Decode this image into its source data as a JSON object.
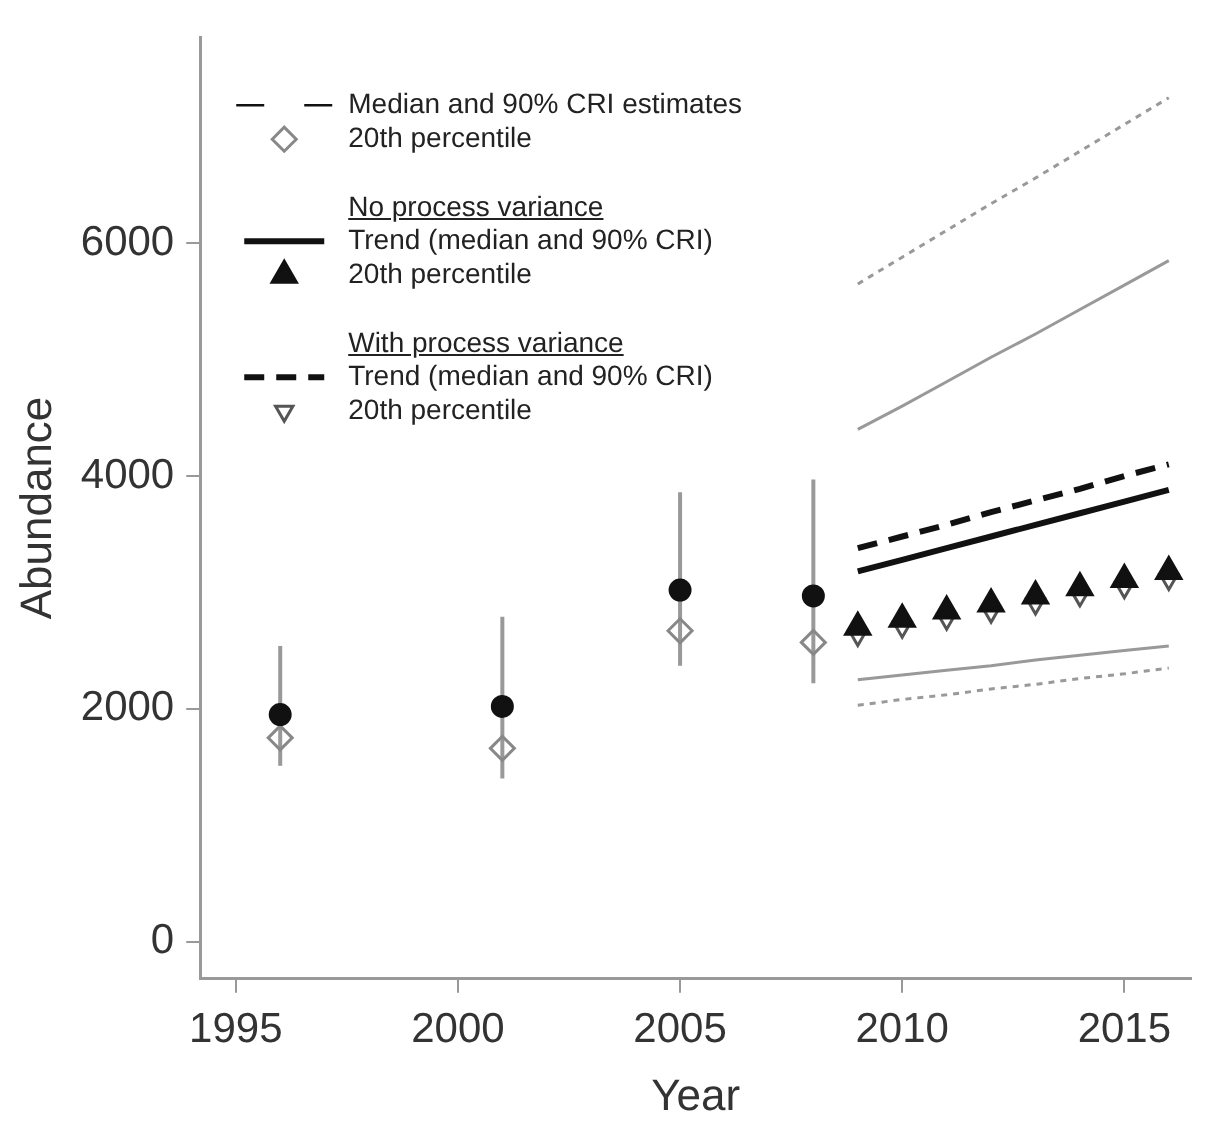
{
  "chart_data": {
    "type": "line",
    "xlabel": "Year",
    "ylabel": "Abundance",
    "xlim": [
      1994.2,
      2016.5
    ],
    "ylim": [
      -320,
      7770
    ],
    "xticks": [
      1995,
      2000,
      2005,
      2010,
      2015
    ],
    "yticks": [
      0,
      2000,
      4000,
      6000
    ],
    "grid": false,
    "legend": "top left",
    "annotations": [
      "No process variance",
      "With process variance"
    ],
    "series": [
      {
        "name": "Median and 90% CRI estimates",
        "type": "scatter",
        "marker": "circle",
        "color": "#111111",
        "x": [
          1996,
          2001,
          2005,
          2008
        ],
        "values": [
          1950,
          2020,
          3020,
          2970
        ],
        "errors": [
          [
            1510,
            2540
          ],
          [
            1400,
            2790
          ],
          [
            2370,
            3860
          ],
          [
            2220,
            3970
          ]
        ]
      },
      {
        "name": "20th percentile",
        "type": "scatter",
        "marker": "diamond",
        "color": "#888888",
        "x": [
          1996,
          2001,
          2005,
          2008
        ],
        "values": [
          1750,
          1660,
          2670,
          2570
        ]
      },
      {
        "name": "Trend (median and 90% CRI)",
        "type": "line",
        "line_style": "solid",
        "color": "#111111",
        "x": [
          2009,
          2010,
          2011,
          2012,
          2013,
          2014,
          2015,
          2016
        ],
        "values": [
          3180,
          3280,
          3380,
          3480,
          3580,
          3680,
          3780,
          3880
        ]
      },
      {
        "type": "line",
        "line_style": "solid",
        "color": "#999999",
        "x": [
          2009,
          2010,
          2011,
          2012,
          2013,
          2014,
          2015,
          2016
        ],
        "values": [
          4400,
          4600,
          4810,
          5020,
          5220,
          5430,
          5640,
          5850
        ]
      },
      {
        "type": "line",
        "line_style": "solid",
        "color": "#999999",
        "x": [
          2009,
          2010,
          2011,
          2012,
          2013,
          2014,
          2015,
          2016
        ],
        "values": [
          2250,
          2290,
          2330,
          2370,
          2420,
          2460,
          2500,
          2540
        ]
      },
      {
        "name": "20th percentile",
        "type": "scatter",
        "marker": "triangle",
        "color": "#111111",
        "x": [
          2009,
          2010,
          2011,
          2012,
          2013,
          2014,
          2015,
          2016
        ],
        "values": [
          2700,
          2770,
          2840,
          2900,
          2970,
          3040,
          3110,
          3180
        ]
      },
      {
        "name": "Trend (median and 90% CRI)",
        "type": "line",
        "line_style": "dashed",
        "color": "#111111",
        "x": [
          2009,
          2010,
          2011,
          2012,
          2013,
          2014,
          2015,
          2016
        ],
        "values": [
          3380,
          3480,
          3580,
          3690,
          3790,
          3890,
          4000,
          4100
        ]
      },
      {
        "type": "line",
        "line_style": "dotted",
        "color": "#999999",
        "x": [
          2009,
          2010,
          2011,
          2012,
          2013,
          2014,
          2015,
          2016
        ],
        "values": [
          5650,
          5880,
          6110,
          6340,
          6560,
          6790,
          7020,
          7250
        ]
      },
      {
        "type": "line",
        "line_style": "dotted",
        "color": "#999999",
        "x": [
          2009,
          2010,
          2011,
          2012,
          2013,
          2014,
          2015,
          2016
        ],
        "values": [
          2030,
          2080,
          2120,
          2170,
          2210,
          2260,
          2300,
          2350
        ]
      },
      {
        "name": "20th percentile",
        "type": "scatter",
        "marker": "triangle-down",
        "color": "#555555",
        "x": [
          2009,
          2010,
          2011,
          2012,
          2013,
          2014,
          2015,
          2016
        ],
        "values": [
          2630,
          2700,
          2770,
          2830,
          2900,
          2970,
          3040,
          3110
        ]
      }
    ]
  }
}
